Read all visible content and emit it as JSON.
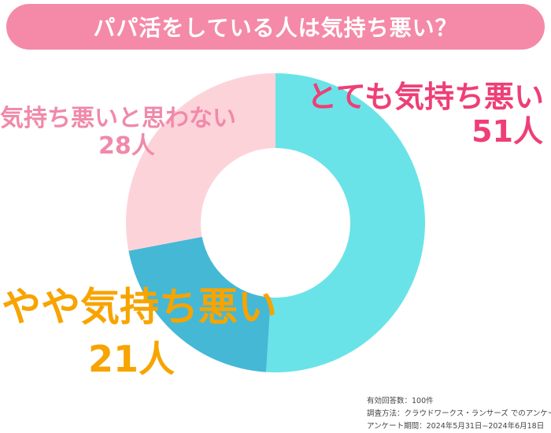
{
  "title": "パパ活をしている人は気持ち悪い？",
  "colors": {
    "banner": "#f48aa7",
    "very": "#6ae3e8",
    "some": "#45b8d6",
    "not": "#fdd3da",
    "label_very": "#ee3f76",
    "label_some": "#f7a400",
    "label_not": "#f08aaa"
  },
  "chart_data": {
    "type": "pie",
    "donut": true,
    "title": "パパ活をしている人は気持ち悪い？",
    "unit": "人",
    "slices": [
      {
        "label": "とても気持ち悪い",
        "value": 51,
        "count_text": "51人"
      },
      {
        "label": "やや気持ち悪い",
        "value": 21,
        "count_text": "21人"
      },
      {
        "label": "気持ち悪いと思わない",
        "value": 28,
        "count_text": "28人"
      }
    ]
  },
  "footnote": {
    "line1": "有効回答数：100件",
    "line2": "調査方法：クラウドワークス・ランサーズ でのアンケート",
    "line3": "アンケート期間：2024年5月31日−2024年6月18日"
  }
}
